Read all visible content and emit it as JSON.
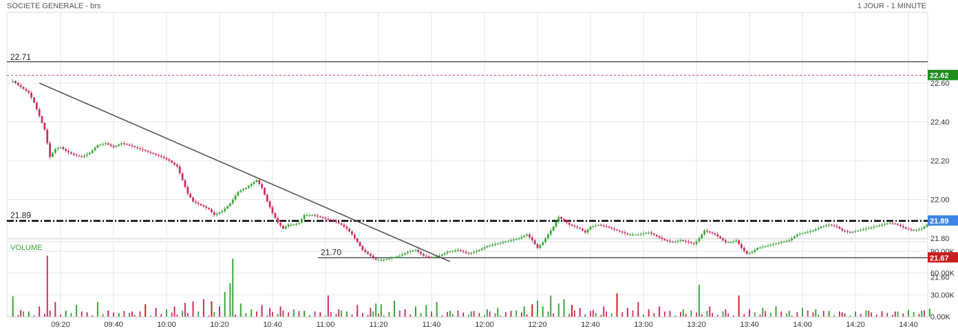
{
  "header": {
    "title": "SOCIETE GENERALE - brs",
    "period": "1 JOUR - 1 MINUTE"
  },
  "colors": {
    "up": "#3aa63a",
    "down": "#c8325a",
    "trend": "#555555",
    "resistance": "#000000",
    "prev_close": "#d23c4b",
    "badge_high": "#1e8c1e",
    "badge_last": "#3d85e6",
    "badge_low": "#c81e1e",
    "grid": "#e6e6e6"
  },
  "chart_data": [
    {
      "type": "candlestick",
      "title": "SOCIETE GENERALE - brs",
      "interval": "1 minute",
      "ylim": [
        21.6,
        22.8
      ],
      "y_ticks": [
        "21.60",
        "21.80",
        "22.00",
        "22.20",
        "22.40",
        "22.60"
      ],
      "x_ticks": [
        "09:20",
        "09:40",
        "10:00",
        "10:20",
        "10:40",
        "11:00",
        "11:20",
        "11:40",
        "12:00",
        "12:20",
        "12:40",
        "13:00",
        "13:20",
        "13:40",
        "14:00",
        "14:20",
        "14:40"
      ],
      "x_range": [
        "09:02",
        "14:50"
      ],
      "grid": true,
      "close_path": [
        [
          "09:02",
          22.61
        ],
        [
          "09:04",
          22.59
        ],
        [
          "09:06",
          22.57
        ],
        [
          "09:08",
          22.55
        ],
        [
          "09:10",
          22.5
        ],
        [
          "09:12",
          22.43
        ],
        [
          "09:14",
          22.36
        ],
        [
          "09:16",
          22.22
        ],
        [
          "09:18",
          22.26
        ],
        [
          "09:20",
          22.27
        ],
        [
          "09:22",
          22.25
        ],
        [
          "09:25",
          22.23
        ],
        [
          "09:28",
          22.22
        ],
        [
          "09:31",
          22.24
        ],
        [
          "09:34",
          22.28
        ],
        [
          "09:37",
          22.29
        ],
        [
          "09:40",
          22.27
        ],
        [
          "09:43",
          22.29
        ],
        [
          "09:46",
          22.28
        ],
        [
          "09:50",
          22.26
        ],
        [
          "09:54",
          22.24
        ],
        [
          "09:58",
          22.22
        ],
        [
          "10:01",
          22.2
        ],
        [
          "10:04",
          22.17
        ],
        [
          "10:06",
          22.1
        ],
        [
          "10:08",
          22.03
        ],
        [
          "10:10",
          21.99
        ],
        [
          "10:13",
          21.97
        ],
        [
          "10:16",
          21.95
        ],
        [
          "10:18",
          21.92
        ],
        [
          "10:21",
          21.94
        ],
        [
          "10:24",
          21.98
        ],
        [
          "10:27",
          22.04
        ],
        [
          "10:30",
          22.06
        ],
        [
          "10:32",
          22.08
        ],
        [
          "10:34",
          22.1
        ],
        [
          "10:36",
          22.06
        ],
        [
          "10:38",
          21.99
        ],
        [
          "10:40",
          21.93
        ],
        [
          "10:42",
          21.88
        ],
        [
          "10:44",
          21.85
        ],
        [
          "10:46",
          21.87
        ],
        [
          "10:48",
          21.87
        ],
        [
          "10:50",
          21.88
        ],
        [
          "10:52",
          21.92
        ],
        [
          "10:55",
          21.92
        ],
        [
          "10:58",
          21.91
        ],
        [
          "11:00",
          21.9
        ],
        [
          "11:03",
          21.89
        ],
        [
          "11:06",
          21.87
        ],
        [
          "11:08",
          21.85
        ],
        [
          "11:10",
          21.82
        ],
        [
          "11:12",
          21.78
        ],
        [
          "11:14",
          21.74
        ],
        [
          "11:16",
          21.72
        ],
        [
          "11:19",
          21.69
        ],
        [
          "11:22",
          21.69
        ],
        [
          "11:25",
          21.7
        ],
        [
          "11:28",
          21.71
        ],
        [
          "11:31",
          21.73
        ],
        [
          "11:34",
          21.74
        ],
        [
          "11:37",
          21.71
        ],
        [
          "11:40",
          21.7
        ],
        [
          "11:43",
          21.71
        ],
        [
          "11:46",
          21.73
        ],
        [
          "11:50",
          21.74
        ],
        [
          "11:54",
          21.72
        ],
        [
          "11:58",
          21.74
        ],
        [
          "12:01",
          21.76
        ],
        [
          "12:04",
          21.77
        ],
        [
          "12:07",
          21.78
        ],
        [
          "12:10",
          21.79
        ],
        [
          "12:13",
          21.8
        ],
        [
          "12:16",
          21.82
        ],
        [
          "12:18",
          21.79
        ],
        [
          "12:20",
          21.75
        ],
        [
          "12:22",
          21.78
        ],
        [
          "12:24",
          21.82
        ],
        [
          "12:26",
          21.86
        ],
        [
          "12:28",
          21.91
        ],
        [
          "12:30",
          21.89
        ],
        [
          "12:32",
          21.87
        ],
        [
          "12:34",
          21.86
        ],
        [
          "12:36",
          21.85
        ],
        [
          "12:38",
          21.83
        ],
        [
          "12:40",
          21.86
        ],
        [
          "12:43",
          21.87
        ],
        [
          "12:46",
          21.86
        ],
        [
          "12:50",
          21.84
        ],
        [
          "12:54",
          21.82
        ],
        [
          "12:58",
          21.82
        ],
        [
          "13:02",
          21.83
        ],
        [
          "13:05",
          21.81
        ],
        [
          "13:08",
          21.79
        ],
        [
          "13:11",
          21.78
        ],
        [
          "13:14",
          21.79
        ],
        [
          "13:17",
          21.78
        ],
        [
          "13:19",
          21.77
        ],
        [
          "13:21",
          21.8
        ],
        [
          "13:23",
          21.84
        ],
        [
          "13:25",
          21.83
        ],
        [
          "13:27",
          21.82
        ],
        [
          "13:29",
          21.8
        ],
        [
          "13:31",
          21.78
        ],
        [
          "13:33",
          21.78
        ],
        [
          "13:35",
          21.79
        ],
        [
          "13:37",
          21.75
        ],
        [
          "13:39",
          21.72
        ],
        [
          "13:41",
          21.73
        ],
        [
          "13:43",
          21.75
        ],
        [
          "13:46",
          21.76
        ],
        [
          "13:49",
          21.77
        ],
        [
          "13:52",
          21.78
        ],
        [
          "13:55",
          21.79
        ],
        [
          "13:58",
          21.82
        ],
        [
          "14:01",
          21.83
        ],
        [
          "14:04",
          21.84
        ],
        [
          "14:07",
          21.86
        ],
        [
          "14:10",
          21.87
        ],
        [
          "14:13",
          21.86
        ],
        [
          "14:15",
          21.84
        ],
        [
          "14:18",
          21.83
        ],
        [
          "14:21",
          21.84
        ],
        [
          "14:24",
          21.85
        ],
        [
          "14:27",
          21.86
        ],
        [
          "14:30",
          21.87
        ],
        [
          "14:33",
          21.88
        ],
        [
          "14:36",
          21.87
        ],
        [
          "14:39",
          21.85
        ],
        [
          "14:42",
          21.84
        ],
        [
          "14:45",
          21.85
        ],
        [
          "14:48",
          21.88
        ]
      ],
      "annotations": {
        "resistance_high": {
          "label": "22.71",
          "value": 22.71
        },
        "prev_close": {
          "value": 22.64
        },
        "support_line": {
          "label": "21.89",
          "value": 21.89
        },
        "low_line": {
          "label": "21.70",
          "value": 21.7,
          "from": "11:00"
        },
        "trendline": {
          "from": [
            "09:12",
            22.6
          ],
          "to": [
            "11:47",
            21.68
          ]
        }
      },
      "price_badges": [
        {
          "label": "22.62",
          "value": 22.64,
          "color": "#1e8c1e"
        },
        {
          "label": "21.89",
          "value": 21.89,
          "color": "#3d85e6"
        },
        {
          "label": "21.67",
          "value": 21.7,
          "color": "#c81e1e"
        }
      ]
    },
    {
      "type": "bar",
      "title": "VOLUME",
      "ylim": [
        0,
        90000
      ],
      "y_ticks": [
        "0.00K",
        "30.00K",
        "60.00K",
        "90.00K"
      ],
      "spikes": [
        [
          "09:02",
          28000,
          "up"
        ],
        [
          "09:05",
          9000,
          "down"
        ],
        [
          "09:08",
          7000,
          "up"
        ],
        [
          "09:12",
          14000,
          "down"
        ],
        [
          "09:15",
          84000,
          "down"
        ],
        [
          "09:18",
          20000,
          "down"
        ],
        [
          "09:22",
          8000,
          "up"
        ],
        [
          "09:26",
          16000,
          "up"
        ],
        [
          "09:30",
          6000,
          "down"
        ],
        [
          "09:34",
          20000,
          "up"
        ],
        [
          "09:38",
          8000,
          "down"
        ],
        [
          "09:42",
          5000,
          "up"
        ],
        [
          "09:47",
          7000,
          "down"
        ],
        [
          "09:52",
          17000,
          "red"
        ],
        [
          "09:56",
          12000,
          "down"
        ],
        [
          "10:00",
          10000,
          "up"
        ],
        [
          "10:03",
          14000,
          "down"
        ],
        [
          "10:07",
          19000,
          "down"
        ],
        [
          "10:10",
          21000,
          "down"
        ],
        [
          "10:14",
          24000,
          "down"
        ],
        [
          "10:17",
          21000,
          "red"
        ],
        [
          "10:20",
          14000,
          "down"
        ],
        [
          "10:22",
          34000,
          "up"
        ],
        [
          "10:24",
          46000,
          "up"
        ],
        [
          "10:25",
          80000,
          "up"
        ],
        [
          "10:28",
          18000,
          "up"
        ],
        [
          "10:32",
          10000,
          "up"
        ],
        [
          "10:36",
          16000,
          "down"
        ],
        [
          "10:39",
          12000,
          "down"
        ],
        [
          "10:43",
          14000,
          "down"
        ],
        [
          "10:48",
          10000,
          "up"
        ],
        [
          "10:52",
          8000,
          "up"
        ],
        [
          "10:58",
          6000,
          "down"
        ],
        [
          "11:01",
          29000,
          "down"
        ],
        [
          "11:05",
          10000,
          "down"
        ],
        [
          "11:08",
          7000,
          "up"
        ],
        [
          "11:12",
          16000,
          "down"
        ],
        [
          "11:17",
          12000,
          "down"
        ],
        [
          "11:19",
          18000,
          "up"
        ],
        [
          "11:21",
          17000,
          "up"
        ],
        [
          "11:26",
          22000,
          "up"
        ],
        [
          "11:30",
          10000,
          "down"
        ],
        [
          "11:34",
          14000,
          "up"
        ],
        [
          "11:38",
          16000,
          "up"
        ],
        [
          "11:42",
          20000,
          "up"
        ],
        [
          "11:47",
          8000,
          "up"
        ],
        [
          "11:55",
          7000,
          "up"
        ],
        [
          "12:01",
          10000,
          "up"
        ],
        [
          "12:05",
          12000,
          "up"
        ],
        [
          "12:10",
          8000,
          "down"
        ],
        [
          "12:15",
          14000,
          "up"
        ],
        [
          "12:18",
          17000,
          "red"
        ],
        [
          "12:20",
          22000,
          "up"
        ],
        [
          "12:22",
          14000,
          "up"
        ],
        [
          "12:25",
          29000,
          "up"
        ],
        [
          "12:28",
          18000,
          "up"
        ],
        [
          "12:30",
          24000,
          "up"
        ],
        [
          "12:33",
          16000,
          "red"
        ],
        [
          "12:36",
          12000,
          "down"
        ],
        [
          "12:41",
          9000,
          "down"
        ],
        [
          "12:45",
          14000,
          "down"
        ],
        [
          "12:50",
          32000,
          "red"
        ],
        [
          "12:54",
          12000,
          "down"
        ],
        [
          "12:58",
          20000,
          "down"
        ],
        [
          "13:02",
          10000,
          "down"
        ],
        [
          "13:06",
          14000,
          "down"
        ],
        [
          "13:10",
          8000,
          "down"
        ],
        [
          "13:15",
          10000,
          "up"
        ],
        [
          "13:21",
          44000,
          "up"
        ],
        [
          "13:25",
          14000,
          "down"
        ],
        [
          "13:31",
          10000,
          "down"
        ],
        [
          "13:36",
          29000,
          "red"
        ],
        [
          "13:40",
          10000,
          "down"
        ],
        [
          "13:45",
          12000,
          "up"
        ],
        [
          "13:50",
          14000,
          "up"
        ],
        [
          "13:55",
          8000,
          "up"
        ],
        [
          "14:00",
          12000,
          "up"
        ],
        [
          "14:05",
          10000,
          "up"
        ],
        [
          "14:10",
          8000,
          "up"
        ],
        [
          "14:15",
          6000,
          "down"
        ],
        [
          "14:20",
          7000,
          "up"
        ],
        [
          "14:25",
          8000,
          "down"
        ],
        [
          "14:30",
          6000,
          "down"
        ],
        [
          "14:35",
          7000,
          "down"
        ],
        [
          "14:40",
          9000,
          "up"
        ],
        [
          "14:45",
          8000,
          "up"
        ],
        [
          "14:48",
          11000,
          "up"
        ]
      ]
    }
  ]
}
